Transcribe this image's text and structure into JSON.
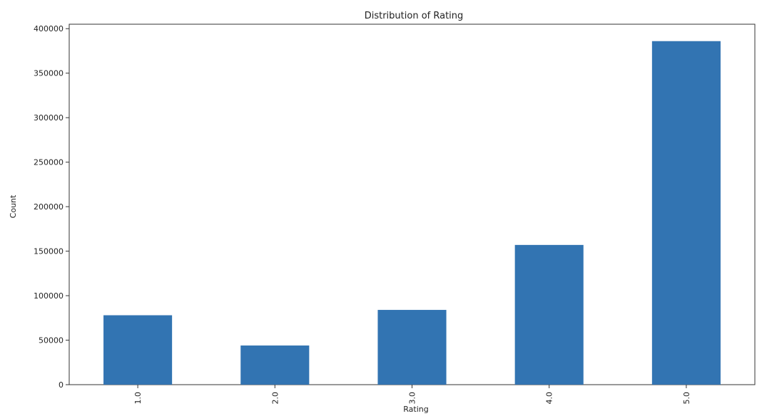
{
  "chart_data": {
    "type": "bar",
    "title": "Distribution of Rating",
    "xlabel": "Rating",
    "ylabel": "Count",
    "categories": [
      "1.0",
      "2.0",
      "3.0",
      "4.0",
      "5.0"
    ],
    "values": [
      78000,
      44000,
      84000,
      157000,
      386000
    ],
    "ylim": [
      0,
      405000
    ],
    "yticks": [
      0,
      50000,
      100000,
      150000,
      200000,
      250000,
      300000,
      350000,
      400000
    ],
    "x_tick_rotation": "vertical",
    "grid": false,
    "legend": "none",
    "bar_color": "#3274b2"
  }
}
